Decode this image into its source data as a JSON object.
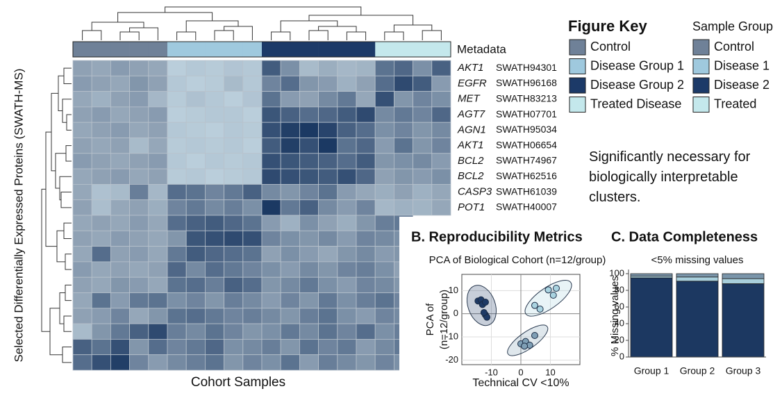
{
  "chart_data": [
    {
      "type": "heatmap",
      "x_label": "Cohort Samples",
      "y_label": "Selected Differentially Expressed Proteins (SWATH-MS)",
      "metadata_label": "Metadata",
      "legend_title": "Figure Key",
      "legend2_title": "Sample Group",
      "groups": [
        {
          "name": "Control",
          "short": "Control",
          "color": "#6f8198"
        },
        {
          "name": "Disease Group 1",
          "short": "Disease 1",
          "color": "#9fc9de"
        },
        {
          "name": "Disease Group 2",
          "short": "Disease 2",
          "color": "#1c3a68"
        },
        {
          "name": "Treated Disease",
          "short": "Treated",
          "color": "#c4e8ec"
        }
      ],
      "column_group": [
        0,
        0,
        0,
        0,
        0,
        1,
        1,
        1,
        1,
        1,
        2,
        2,
        2,
        2,
        2,
        2,
        3,
        3,
        3,
        3
      ],
      "row_labels": [
        {
          "gene": "AKT1",
          "id": "SWATH94301"
        },
        {
          "gene": "EGFR",
          "id": "SWATH96168"
        },
        {
          "gene": "MET",
          "id": "SWATH83213"
        },
        {
          "gene": "AGT7",
          "id": "SWATH07701"
        },
        {
          "gene": "AGN1",
          "id": "SWATH95034"
        },
        {
          "gene": "AKT1",
          "id": "SWATH06654"
        },
        {
          "gene": "BCL2",
          "id": "SWATH74967"
        },
        {
          "gene": "BCL2",
          "id": "SWATH62516"
        },
        {
          "gene": "CASP3",
          "id": "SWATH61039"
        },
        {
          "gene": "POT1",
          "id": "SWATH40007"
        },
        null,
        null,
        null,
        null,
        null,
        null,
        null,
        null,
        null,
        null
      ],
      "color_range": [
        -2,
        2
      ],
      "colors": [
        "#d3e8f2",
        "#95a7b9",
        "#15335e"
      ],
      "values": [
        [
          0.1,
          0,
          0.2,
          0.1,
          0,
          -1.2,
          -1,
          -1.1,
          -0.9,
          -1,
          1.3,
          0.4,
          -0.6,
          -0.2,
          -0.5,
          -0.4,
          0.9,
          1.1,
          0.4,
          1.2
        ],
        [
          0.2,
          0.1,
          0,
          0.3,
          0.1,
          -1,
          -1.2,
          -1.1,
          -0.6,
          -1,
          0.6,
          1,
          0.3,
          0.2,
          -0.3,
          0.1,
          1,
          1.6,
          1.3,
          0.2
        ],
        [
          0,
          -0.3,
          0.1,
          0.2,
          -0.5,
          -1.1,
          -0.8,
          -1,
          -1.2,
          -0.9,
          0.9,
          0.2,
          0.1,
          0.5,
          0.8,
          0,
          1.5,
          0.3,
          0.6,
          0.4
        ],
        [
          0.1,
          0.2,
          0,
          0.1,
          0.2,
          -1.2,
          -1.1,
          -1,
          -1,
          -1.2,
          1.4,
          1.2,
          1,
          1.1,
          1.3,
          1.6,
          0.5,
          0.8,
          0.6,
          1.1
        ],
        [
          0,
          0.1,
          0.2,
          0,
          0.1,
          -1,
          -1.1,
          -1.2,
          -1,
          -1.1,
          1.5,
          1.8,
          1.9,
          1.7,
          1.2,
          1,
          0.4,
          0.6,
          0.3,
          0.5
        ],
        [
          0.1,
          0,
          0.1,
          -0.6,
          0,
          -1.1,
          -1,
          -1.1,
          -1,
          -1.2,
          1.3,
          1.8,
          1.5,
          1.9,
          0.9,
          1.1,
          0.2,
          0.9,
          0.3,
          0.6
        ],
        [
          0.2,
          0.1,
          0,
          0.1,
          0.2,
          -1,
          -1.2,
          -1,
          -1.1,
          -1,
          1.5,
          1.4,
          1.3,
          1.2,
          1,
          1.3,
          0.3,
          0.4,
          0.5,
          0.2
        ],
        [
          0,
          0.1,
          0.2,
          0,
          0.1,
          -1.1,
          -1,
          -1.2,
          -1.1,
          -1,
          1.6,
          1.5,
          1.4,
          1.3,
          1.5,
          1.1,
          0.1,
          0.3,
          0.2,
          0.4
        ],
        [
          0,
          -0.8,
          -0.6,
          0.7,
          -0.5,
          1,
          0.9,
          0.6,
          0.8,
          1.2,
          0.5,
          0.3,
          0.6,
          0.9,
          0.2,
          0,
          -0.2,
          0.1,
          -0.3,
          0
        ],
        [
          0.1,
          -0.7,
          0,
          0.1,
          -0.2,
          0.6,
          0.8,
          0.5,
          0.7,
          0.4,
          1.9,
          0.8,
          1.2,
          0.5,
          0.2,
          0.6,
          -0.5,
          -0.3,
          -0.4,
          0
        ],
        [
          0,
          0.1,
          0,
          0.2,
          0,
          1,
          1.2,
          1.3,
          1.1,
          0.9,
          0.2,
          -0.3,
          0.4,
          0.1,
          -0.2,
          0.3,
          0.7,
          0.8,
          null,
          null
        ],
        [
          0.1,
          0,
          0.2,
          0.1,
          0,
          0.3,
          1.4,
          1.5,
          1.6,
          1.5,
          0.6,
          0.4,
          0.3,
          0.5,
          0.2,
          0.6,
          0.5,
          0.4,
          null,
          null
        ],
        [
          0,
          1,
          0.1,
          0.2,
          0,
          0.8,
          1.3,
          1.1,
          1,
          0.9,
          0.1,
          0.4,
          0.2,
          0,
          0.3,
          0.5,
          0.2,
          0.3,
          null,
          null
        ],
        [
          0.2,
          0,
          0.1,
          0,
          0.1,
          1.1,
          0.5,
          1,
          0.8,
          0.6,
          0.4,
          0.2,
          0.5,
          0.3,
          0.6,
          0.7,
          0.4,
          0.1,
          null,
          null
        ],
        [
          0.1,
          0,
          0.3,
          0.2,
          0,
          0.9,
          1,
          0.7,
          1.2,
          1,
          0.3,
          0.5,
          0.8,
          0.4,
          0.2,
          0.6,
          0.5,
          0.3,
          null,
          null
        ],
        [
          0,
          0.9,
          0.2,
          0.8,
          0.9,
          0.4,
          0.6,
          0.3,
          0.7,
          0.5,
          0.2,
          0.6,
          0.3,
          0.8,
          0.4,
          0.7,
          0.9,
          0.6,
          null,
          null
        ],
        [
          0.1,
          0.2,
          0.6,
          0,
          0.3,
          0.9,
          1,
          0.8,
          0.6,
          0.7,
          0.5,
          0.3,
          0.7,
          0.9,
          0.4,
          0.2,
          0.6,
          0.5,
          null,
          null
        ],
        [
          -0.6,
          0.3,
          0.8,
          1.2,
          1.6,
          0.7,
          0.5,
          0.9,
          0.6,
          0.3,
          0.4,
          0.8,
          0.5,
          0.9,
          0.6,
          1,
          0.4,
          0.7,
          null,
          null
        ],
        [
          1.2,
          0.9,
          1.5,
          0.3,
          1,
          0.6,
          0.8,
          1.1,
          0.4,
          0.5,
          0.7,
          0.3,
          0.9,
          0.6,
          0.8,
          0.2,
          0.5,
          0.8,
          null,
          null
        ],
        [
          1,
          1.5,
          1.8,
          0.6,
          0.2,
          0.5,
          0.7,
          0.9,
          0.3,
          0.6,
          0.4,
          0.9,
          0.2,
          0.7,
          0.5,
          0.3,
          0.6,
          0.4,
          null,
          null
        ]
      ],
      "annotation": "Significantly necessary for biologically interpretable clusters."
    },
    {
      "type": "scatter",
      "title": "B. Reproducibility Metrics",
      "subtitle": "PCA of Biological Cohort (n=12/group)",
      "x_label": "Technical CV <10%",
      "y_label": [
        "PCA of",
        "(n=12/group)"
      ],
      "xlim": [
        -20,
        20
      ],
      "ylim": [
        -22,
        17
      ],
      "xticks": [
        -10,
        0,
        10
      ],
      "yticks": [
        -20,
        -10,
        0,
        10
      ],
      "grid": true,
      "series": [
        {
          "color": "#1e3a66",
          "x": [
            -14.5,
            -13.5,
            -13,
            -12,
            -12,
            -11.5,
            -12.5
          ],
          "values": [
            5.5,
            6,
            4,
            5,
            -0.5,
            -1.5,
            0.5
          ],
          "ellipse": {
            "center": [
              -13.3,
              3.6
            ],
            "radii": [
              4.6,
              9
            ],
            "angle": -20
          }
        },
        {
          "color": "#a9d3e0",
          "x": [
            4.7,
            6.5,
            9.3,
            11,
            12
          ],
          "values": [
            3.6,
            2,
            10.3,
            8,
            11
          ],
          "ellipse": {
            "center": [
              9.3,
              6.7
            ],
            "radii": [
              9.3,
              4.5
            ],
            "angle": -35
          }
        },
        {
          "color": "#7f9fb5",
          "x": [
            0,
            1.6,
            3,
            4.7,
            1.2
          ],
          "values": [
            -13,
            -12,
            -13.6,
            -9.4,
            -14
          ],
          "ellipse": {
            "center": [
              2.3,
              -11.5
            ],
            "radii": [
              8.1,
              3.6
            ],
            "angle": -35
          }
        }
      ]
    },
    {
      "type": "stacked_bar",
      "title": "C. Data Completeness",
      "subtitle": "<5% missing values",
      "y_label": "% Missing values",
      "categories": [
        "Group 1",
        "Group 2",
        "Group 3"
      ],
      "ylim": [
        0,
        105
      ],
      "yticks": [
        0,
        20,
        40,
        60,
        80,
        100
      ],
      "series": [
        {
          "color": "#1c3861",
          "values": [
            95,
            91,
            88
          ]
        },
        {
          "color": "#a8cfdc",
          "values": [
            2,
            5,
            6
          ]
        },
        {
          "color": "#7a95aa",
          "values": [
            3,
            4,
            6
          ]
        }
      ]
    }
  ]
}
